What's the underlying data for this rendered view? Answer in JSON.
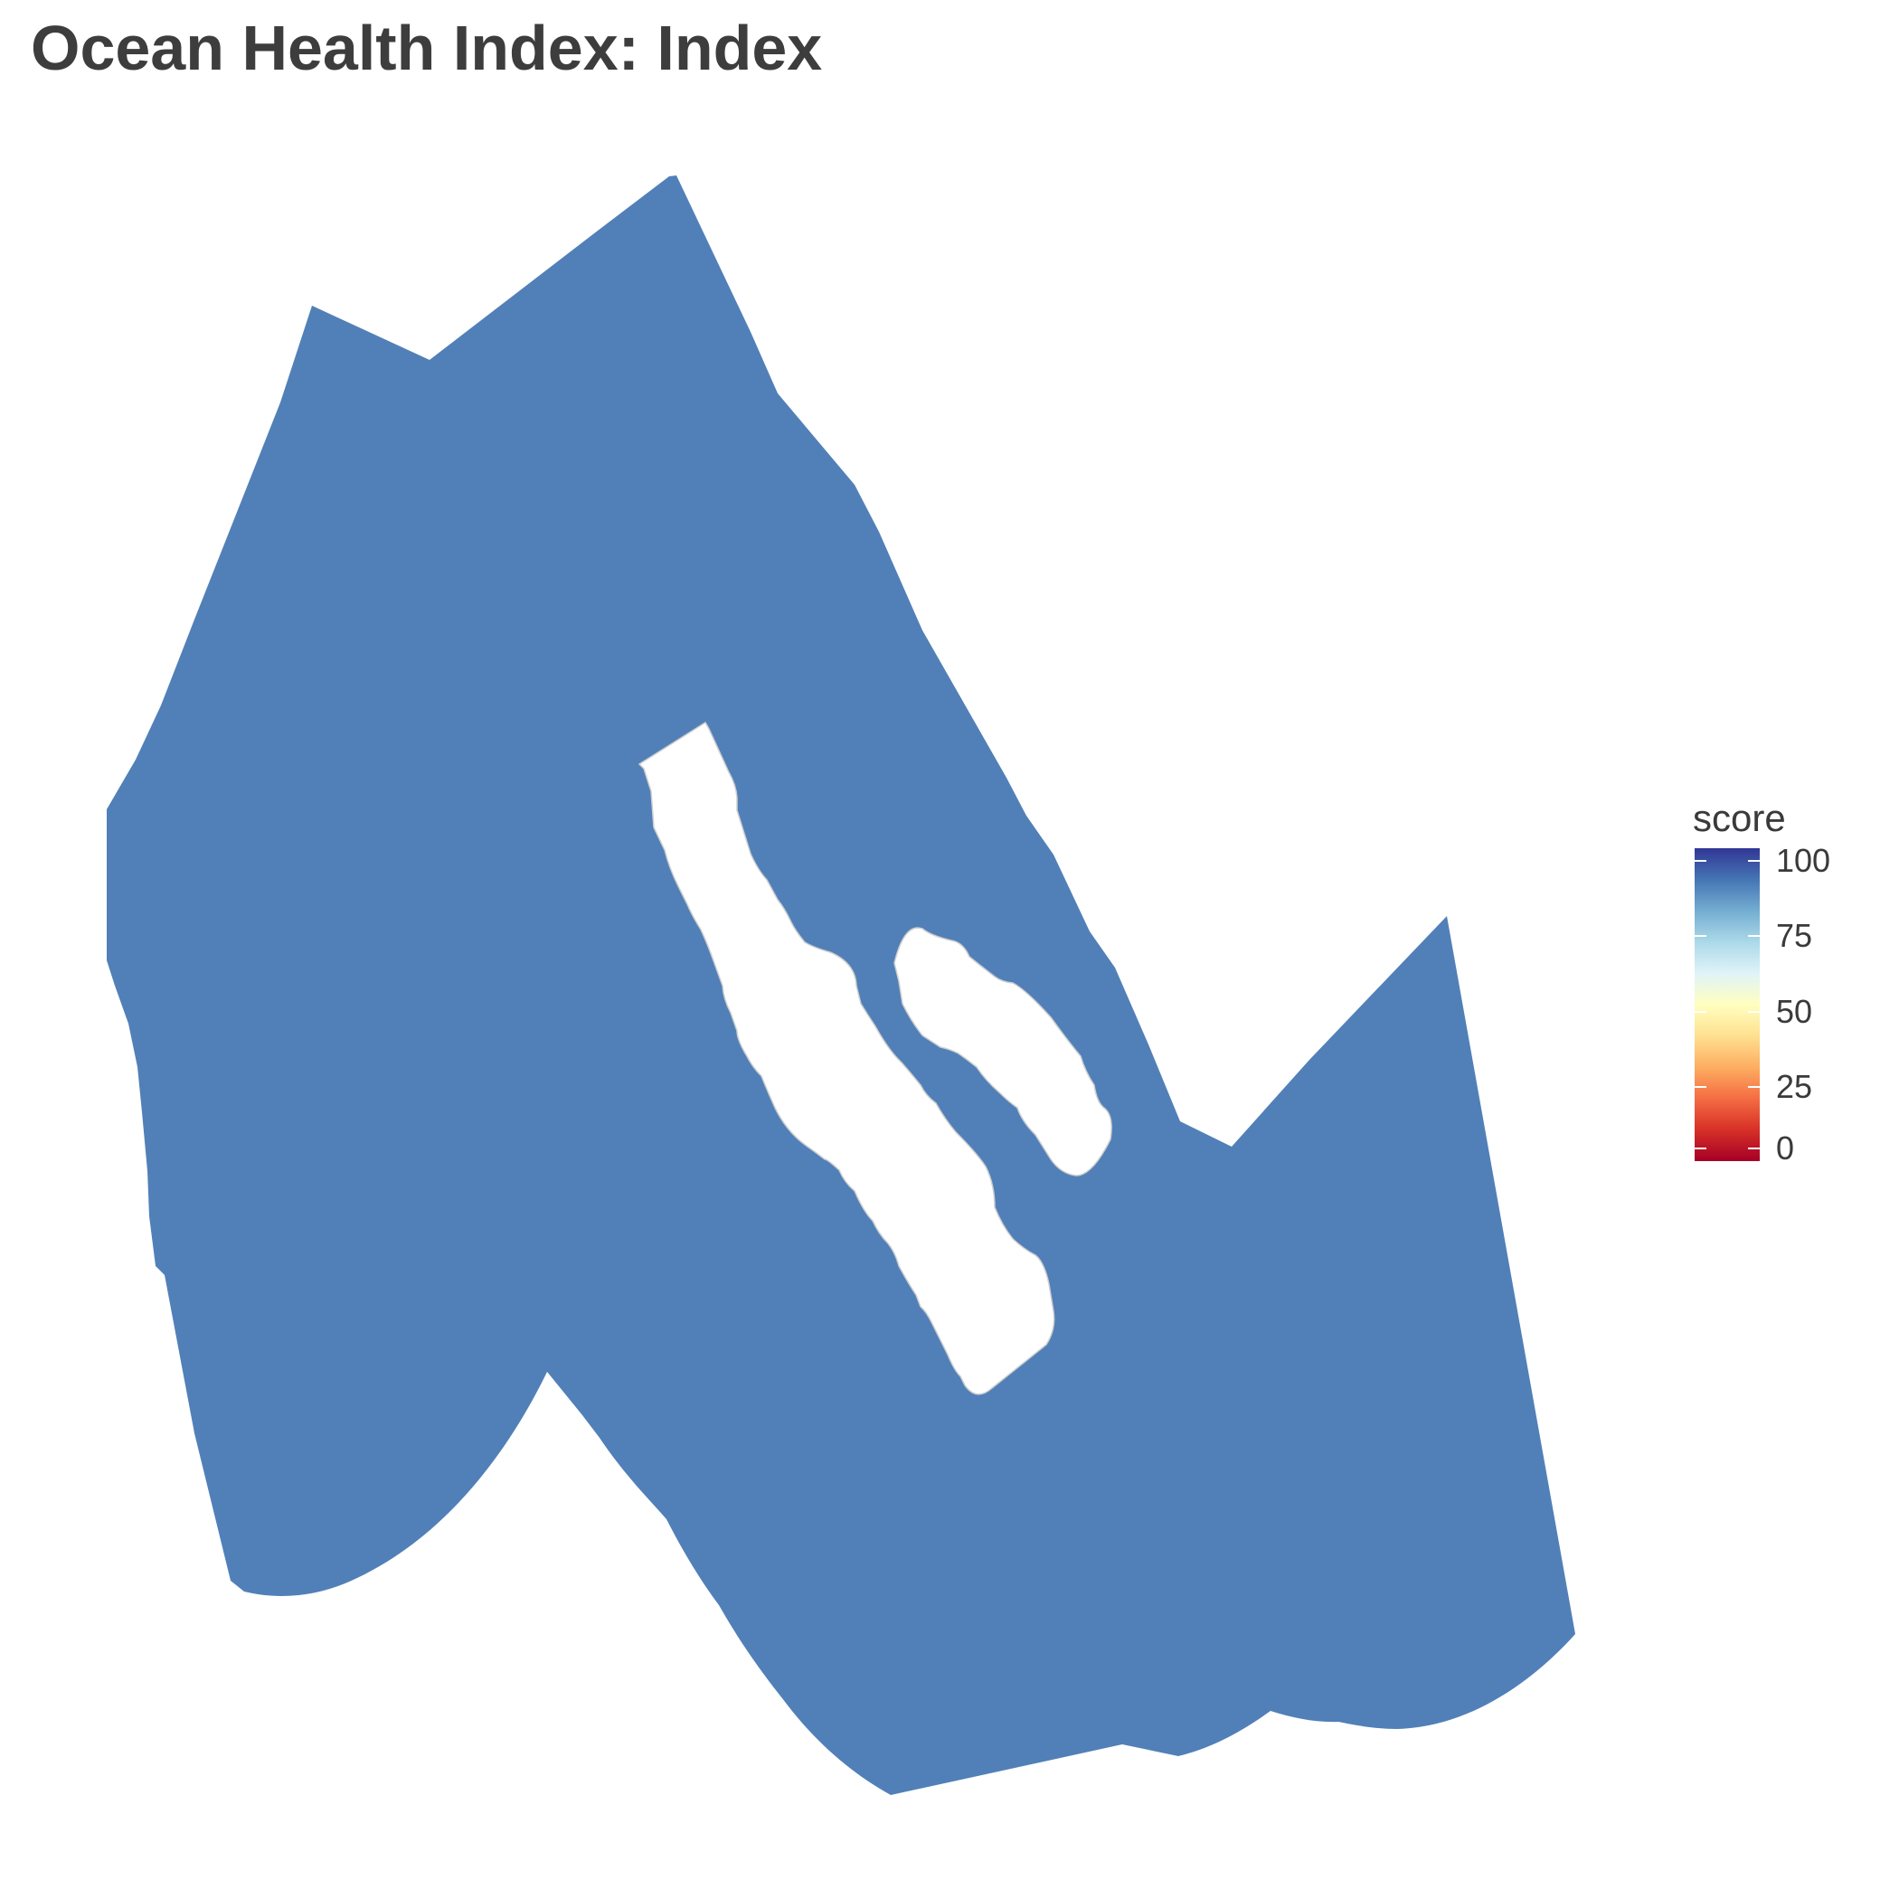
{
  "title": "Ocean Health Index: Index",
  "map": {
    "fill_color": "#5180b8",
    "region_score": 80,
    "border_color": "#cfcfcf"
  },
  "legend": {
    "title": "score",
    "labels": [
      "100",
      "75",
      "50",
      "25",
      "0"
    ],
    "scale": [
      0,
      100
    ],
    "colors": [
      "#a50026",
      "#d73027",
      "#f46d43",
      "#fdae61",
      "#fee090",
      "#ffffbf",
      "#e0f3f8",
      "#abd9e9",
      "#74add1",
      "#4575b4",
      "#313695"
    ]
  }
}
